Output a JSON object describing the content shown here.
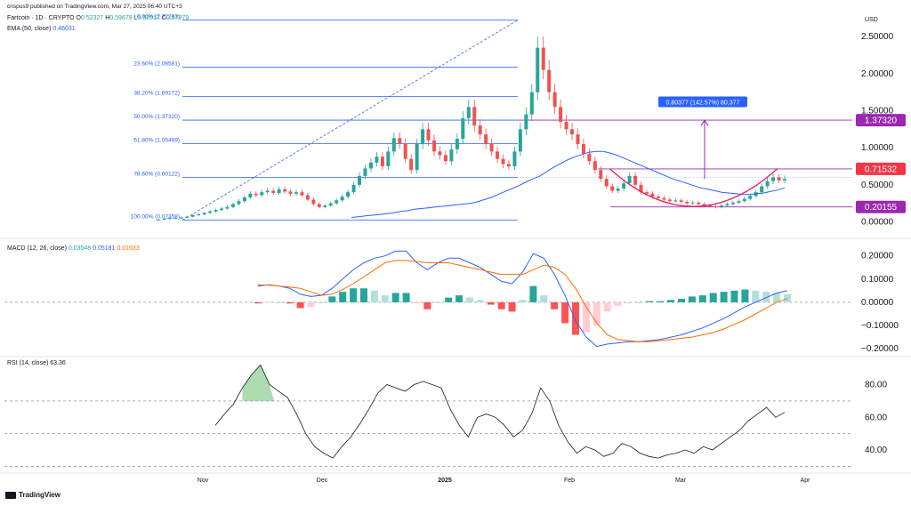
{
  "header": {
    "publisher": "crispus9 published on TradingView.com, Mar 27, 2025 06:40 UTC+3",
    "symbol": "Fartcoin · 1D · CRYPTO",
    "ohlc": {
      "O": "0.52327",
      "H": "0.59679",
      "L": "0.52017",
      "C": "0.57979"
    },
    "ema_label": "EMA (50, close)",
    "ema_value": "0.46031"
  },
  "currency": "USD",
  "time_axis": [
    "Nov",
    "Dec",
    "2025",
    "Feb",
    "Mar",
    "Apr"
  ],
  "macd": {
    "label": "MACD (12, 26, close)",
    "hist": "0.03548",
    "macd": "0.05181",
    "signal": "0.01633"
  },
  "rsi": {
    "label": "RSI (14, close)",
    "value": "63.36"
  },
  "measure_label": "0.80377 (142.57%) 80,377",
  "price_tags": [
    {
      "value": "1.37320",
      "color": "#9c27b0"
    },
    {
      "value": "0.71532",
      "color": "#f23645"
    },
    {
      "value": "0.20155",
      "color": "#9c27b0"
    }
  ],
  "fib_levels": [
    {
      "label": "0.00% (2.72283)",
      "price": 2.72283
    },
    {
      "label": "23.60% (2.08581)",
      "price": 2.08581
    },
    {
      "label": "38.20% (1.69172)",
      "price": 1.69172
    },
    {
      "label": "50.00% (1.37320)",
      "price": 1.3732
    },
    {
      "label": "61.80% (1.05469)",
      "price": 1.05469
    },
    {
      "label": "78.60% (0.60122)",
      "price": 0.60122
    },
    {
      "label": "100.00% (0.02358)",
      "price": 0.02358
    }
  ],
  "footer": {
    "logo": "TradingView"
  },
  "colors": {
    "up": "#26a69a",
    "down": "#ef5350",
    "ema": "#2962ff",
    "macd": "#2962ff",
    "signal": "#ff6d00",
    "rsi": "#131722",
    "fib": "#2962ff",
    "purple": "#9c27b0",
    "cup": "#e91e63"
  },
  "chart_data": [
    {
      "type": "candlestick",
      "title": "Fartcoin · 1D · CRYPTO",
      "ylabel": "USD",
      "ylim": [
        -0.15,
        2.85
      ],
      "yticks": [
        0.0,
        0.5,
        1.0,
        1.5,
        2.0,
        2.5
      ],
      "ytick_labels": [
        "0.00000",
        "0.50000",
        "1.00000",
        "1.50000",
        "2.00000",
        "2.50000"
      ],
      "x_labels": [
        "Nov",
        "Dec",
        "2025",
        "Feb",
        "Mar",
        "Apr"
      ],
      "close": [
        0.03,
        0.04,
        0.05,
        0.05,
        0.06,
        0.07,
        0.09,
        0.1,
        0.12,
        0.14,
        0.16,
        0.18,
        0.2,
        0.24,
        0.28,
        0.33,
        0.38,
        0.36,
        0.4,
        0.42,
        0.39,
        0.44,
        0.41,
        0.38,
        0.4,
        0.36,
        0.3,
        0.24,
        0.2,
        0.22,
        0.25,
        0.29,
        0.34,
        0.4,
        0.5,
        0.62,
        0.72,
        0.8,
        0.88,
        0.75,
        0.95,
        1.13,
        1.05,
        0.85,
        0.7,
        1.05,
        1.25,
        1.1,
        0.95,
        0.9,
        0.82,
        0.98,
        1.12,
        1.4,
        1.55,
        1.3,
        1.18,
        1.05,
        0.95,
        0.85,
        0.78,
        0.75,
        0.95,
        1.25,
        1.45,
        1.75,
        2.35,
        2.05,
        1.75,
        1.55,
        1.35,
        1.25,
        1.18,
        1.05,
        0.92,
        0.82,
        0.7,
        0.58,
        0.48,
        0.42,
        0.45,
        0.52,
        0.62,
        0.5,
        0.4,
        0.38,
        0.34,
        0.32,
        0.3,
        0.28,
        0.29,
        0.27,
        0.25,
        0.26,
        0.24,
        0.22,
        0.21,
        0.2,
        0.22,
        0.24,
        0.26,
        0.28,
        0.31,
        0.35,
        0.4,
        0.48,
        0.55,
        0.6,
        0.56,
        0.58
      ],
      "series": [
        {
          "name": "EMA (50, close)",
          "values": [
            0.06,
            0.07,
            0.08,
            0.09,
            0.1,
            0.11,
            0.12,
            0.14,
            0.15,
            0.17,
            0.18,
            0.19,
            0.2,
            0.21,
            0.22,
            0.23,
            0.24,
            0.25,
            0.27,
            0.3,
            0.33,
            0.37,
            0.41,
            0.45,
            0.49,
            0.54,
            0.58,
            0.62,
            0.68,
            0.74,
            0.79,
            0.84,
            0.88,
            0.91,
            0.94,
            0.95,
            0.95,
            0.93,
            0.9,
            0.86,
            0.82,
            0.78,
            0.74,
            0.7,
            0.66,
            0.62,
            0.58,
            0.55,
            0.52,
            0.49,
            0.46,
            0.44,
            0.42,
            0.4,
            0.39,
            0.38,
            0.37,
            0.37,
            0.38,
            0.39,
            0.41,
            0.43,
            0.46
          ]
        }
      ],
      "annotations": [
        "0.80377 (142.57%) 80,377",
        "1.37320",
        "0.71532",
        "0.20155"
      ]
    },
    {
      "type": "line",
      "title": "MACD (12, 26, close)",
      "ylim": [
        -0.23,
        0.26
      ],
      "yticks": [
        -0.2,
        -0.1,
        0.0,
        0.1,
        0.2
      ],
      "ytick_labels": [
        "−0.20000",
        "−0.10000",
        "0.00000",
        "0.10000",
        "0.20000"
      ],
      "series": [
        {
          "name": "MACD",
          "values": [
            0.07,
            0.075,
            0.07,
            0.06,
            0.035,
            0.025,
            0.03,
            0.06,
            0.1,
            0.14,
            0.17,
            0.19,
            0.2,
            0.22,
            0.22,
            0.17,
            0.14,
            0.17,
            0.19,
            0.19,
            0.17,
            0.15,
            0.12,
            0.09,
            0.08,
            0.13,
            0.21,
            0.19,
            0.12,
            0.03,
            -0.08,
            -0.15,
            -0.19,
            -0.18,
            -0.175,
            -0.17,
            -0.17,
            -0.165,
            -0.16,
            -0.15,
            -0.14,
            -0.125,
            -0.11,
            -0.09,
            -0.07,
            -0.045,
            -0.02,
            0.0,
            0.02,
            0.04,
            0.05
          ]
        },
        {
          "name": "Signal",
          "values": [
            0.075,
            0.073,
            0.07,
            0.065,
            0.06,
            0.045,
            0.03,
            0.035,
            0.055,
            0.08,
            0.11,
            0.14,
            0.17,
            0.18,
            0.18,
            0.175,
            0.17,
            0.17,
            0.17,
            0.16,
            0.15,
            0.14,
            0.13,
            0.12,
            0.12,
            0.12,
            0.14,
            0.16,
            0.15,
            0.12,
            0.06,
            -0.02,
            -0.09,
            -0.14,
            -0.16,
            -0.165,
            -0.17,
            -0.17,
            -0.165,
            -0.16,
            -0.155,
            -0.15,
            -0.14,
            -0.13,
            -0.115,
            -0.095,
            -0.075,
            -0.05,
            -0.025,
            0.0,
            0.016
          ]
        }
      ]
    },
    {
      "type": "line",
      "title": "RSI (14, close)",
      "ylim": [
        28,
        95
      ],
      "yticks": [
        40,
        60,
        80
      ],
      "ytick_labels": [
        "40.00",
        "60.00",
        "80.00"
      ],
      "series": [
        {
          "name": "RSI",
          "values": [
            55,
            62,
            68,
            78,
            86,
            92,
            80,
            76,
            72,
            62,
            50,
            42,
            38,
            35,
            42,
            48,
            56,
            65,
            75,
            80,
            78,
            76,
            80,
            82,
            80,
            78,
            65,
            55,
            48,
            60,
            62,
            60,
            55,
            48,
            52,
            62,
            78,
            70,
            55,
            45,
            38,
            42,
            40,
            36,
            38,
            44,
            42,
            38,
            36,
            35,
            37,
            38,
            40,
            38,
            42,
            40,
            44,
            48,
            52,
            58,
            62,
            66,
            60,
            63
          ]
        }
      ]
    }
  ]
}
